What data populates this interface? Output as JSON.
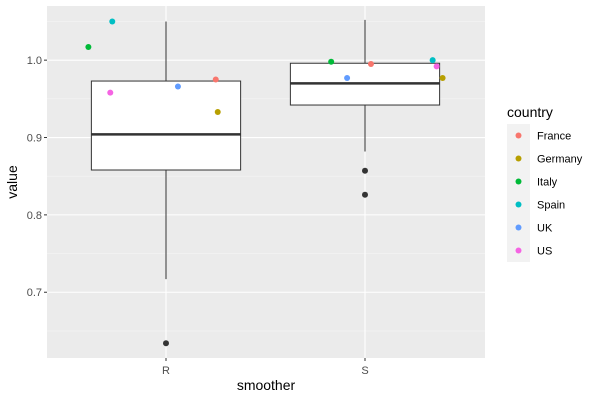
{
  "chart_data": {
    "type": "boxplot_with_jitter",
    "title": "",
    "xlabel": "smoother",
    "ylabel": "value",
    "categories": [
      "R",
      "S"
    ],
    "ylim": [
      0.615,
      1.07
    ],
    "y_ticks": [
      0.7,
      0.8,
      0.9,
      1.0
    ],
    "y_tick_labels": [
      "0.7",
      "0.8",
      "0.9",
      "1.0"
    ],
    "grid": true,
    "legend": {
      "title": "country",
      "position": "right",
      "entries": [
        {
          "name": "France",
          "color": "#F8766D"
        },
        {
          "name": "Germany",
          "color": "#B79F00"
        },
        {
          "name": "Italy",
          "color": "#00BA38"
        },
        {
          "name": "Spain",
          "color": "#00BFC4"
        },
        {
          "name": "UK",
          "color": "#619CFF"
        },
        {
          "name": "US",
          "color": "#F564E3"
        }
      ]
    },
    "boxes": [
      {
        "category": "R",
        "q1": 0.858,
        "median": 0.904,
        "q3": 0.973,
        "whisker_low": 0.717,
        "whisker_high": 1.05,
        "outliers": [
          0.634
        ]
      },
      {
        "category": "S",
        "q1": 0.942,
        "median": 0.97,
        "q3": 0.996,
        "whisker_low": 0.882,
        "whisker_high": 1.052,
        "outliers": [
          0.857,
          0.826
        ]
      }
    ],
    "points": [
      {
        "category": "R",
        "country": "Italy",
        "x_offset": -0.39,
        "value": 1.017
      },
      {
        "category": "R",
        "country": "Spain",
        "x_offset": -0.27,
        "value": 1.05
      },
      {
        "category": "R",
        "country": "US",
        "x_offset": -0.28,
        "value": 0.958
      },
      {
        "category": "R",
        "country": "UK",
        "x_offset": 0.06,
        "value": 0.966
      },
      {
        "category": "R",
        "country": "France",
        "x_offset": 0.25,
        "value": 0.975
      },
      {
        "category": "R",
        "country": "Germany",
        "x_offset": 0.26,
        "value": 0.933
      },
      {
        "category": "S",
        "country": "Italy",
        "x_offset": -0.17,
        "value": 0.998
      },
      {
        "category": "S",
        "country": "UK",
        "x_offset": -0.09,
        "value": 0.977
      },
      {
        "category": "S",
        "country": "France",
        "x_offset": 0.03,
        "value": 0.995
      },
      {
        "category": "S",
        "country": "Spain",
        "x_offset": 0.34,
        "value": 1.0
      },
      {
        "category": "S",
        "country": "US",
        "x_offset": 0.36,
        "value": 0.992
      },
      {
        "category": "S",
        "country": "Germany",
        "x_offset": 0.39,
        "value": 0.977
      }
    ],
    "colors": {
      "panel": "#EBEBEB",
      "grid_major": "#FFFFFF",
      "grid_minor": "#F5F5F5",
      "box_line": "#333333",
      "outlier": "#333333"
    }
  }
}
